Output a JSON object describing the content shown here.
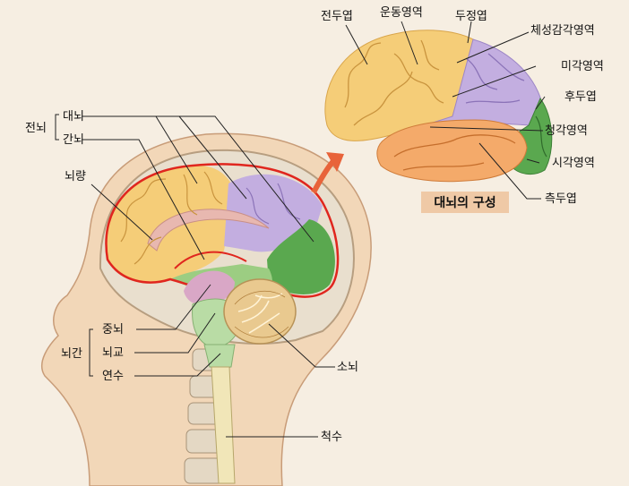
{
  "labels": {
    "forebrain": "전뇌",
    "cerebrum": "대뇌",
    "diencephalon": "간뇌",
    "corpus_callosum": "뇌량",
    "brainstem": "뇌간",
    "midbrain": "중뇌",
    "pons": "뇌교",
    "medulla": "연수",
    "cerebellum": "소뇌",
    "spinal_cord": "척수",
    "frontal_lobe": "전두엽",
    "motor_area": "운동영역",
    "parietal_lobe": "두정엽",
    "somatosensory_area": "체성감각영역",
    "gustatory_area": "미각영역",
    "occipital_lobe": "후두엽",
    "auditory_area": "청각영역",
    "visual_area": "시각영역",
    "temporal_lobe": "측두엽"
  },
  "caption": "대뇌의 구성",
  "colors": {
    "frontal": "#f5cd78",
    "parietal": "#c3aee0",
    "occipital": "#5aa84f",
    "temporal": "#f4aa6a",
    "cerebrum_outline": "#e0261e",
    "head": "#f2d7b8",
    "bone": "#ebe3d4",
    "brainstem": "#b9dca5",
    "arrow": "#e8633a",
    "caption_bg": "#efc9a6"
  }
}
